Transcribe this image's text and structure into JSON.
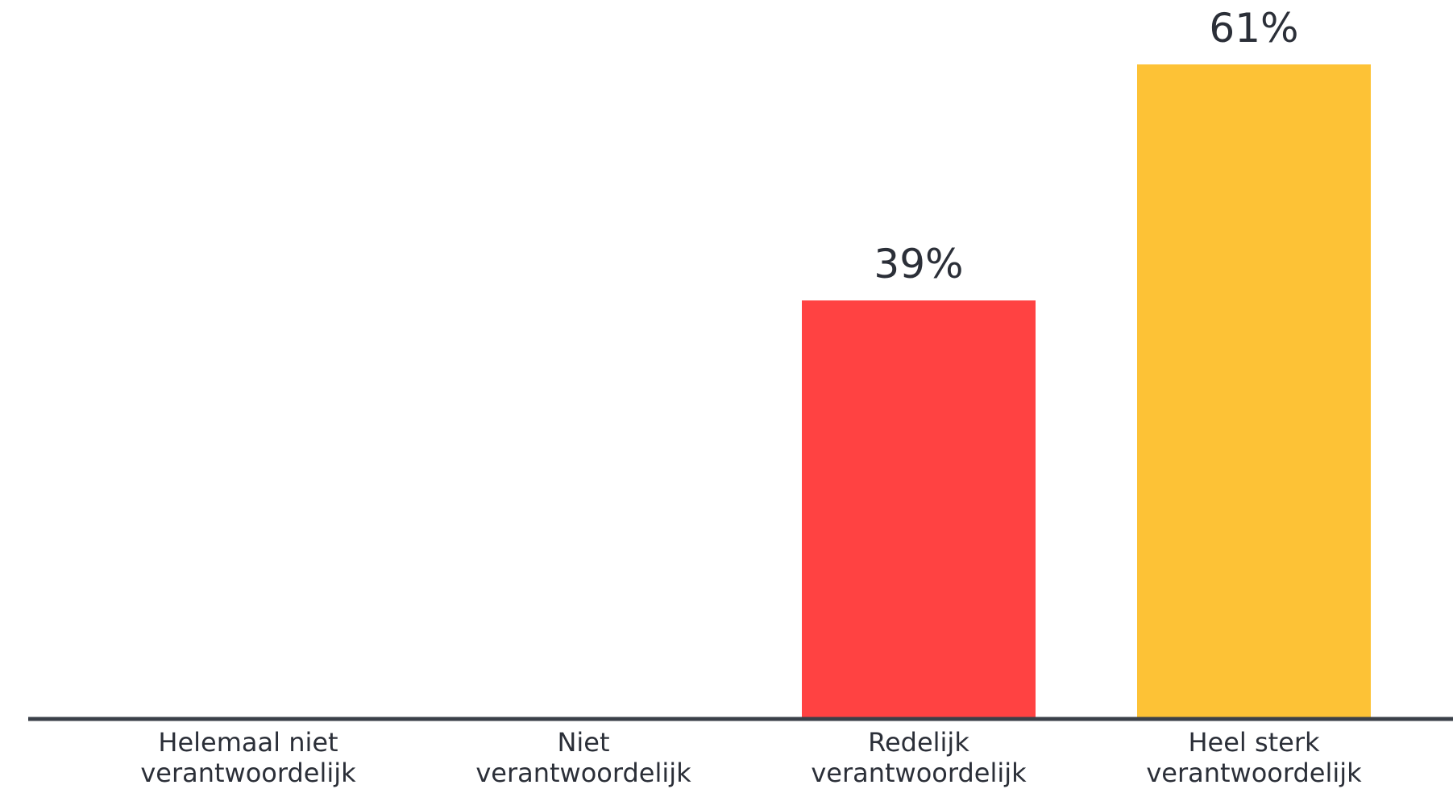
{
  "chart_data": {
    "type": "bar",
    "title": "",
    "xlabel": "",
    "ylabel": "",
    "ylim": [
      0,
      61
    ],
    "grid": false,
    "categories": [
      [
        "Helemaal niet",
        "verantwoordelijk"
      ],
      [
        "Niet",
        "verantwoordelijk"
      ],
      [
        "Redelijk",
        "verantwoordelijk"
      ],
      [
        "Heel sterk",
        "verantwoordelijk"
      ]
    ],
    "values": [
      0,
      0,
      39,
      61
    ],
    "value_labels": [
      "",
      "",
      "39%",
      "61%"
    ],
    "colors": [
      "#ff4242",
      "#ff4242",
      "#ff4242",
      "#fdc236"
    ],
    "baseline_color": "#3b4049"
  }
}
